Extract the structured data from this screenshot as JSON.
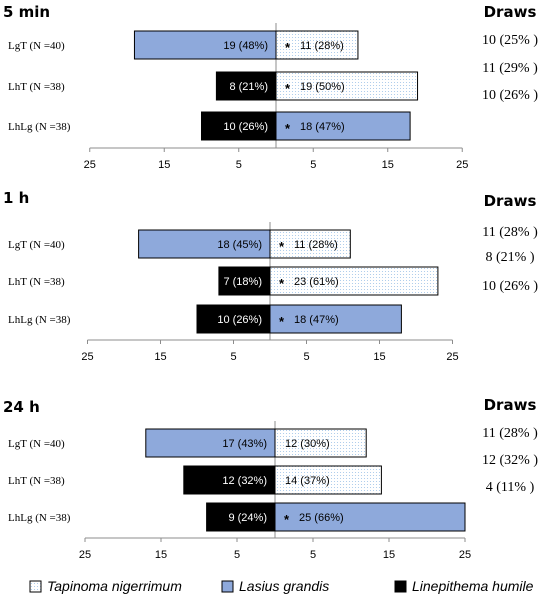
{
  "colors": {
    "lasius": "#8ea9db",
    "linepithema": "#000000",
    "tapinoma_fill": "#ffffff",
    "tapinoma_dots": "#9ec3e8",
    "axis": "#8c8c8c"
  },
  "draws_heading": "Draws",
  "chart_data": [
    {
      "type": "bar",
      "title": "5 min",
      "x_tick_labels": [
        "25",
        "15",
        "5",
        "5",
        "15",
        "25"
      ],
      "xlim": [
        -25,
        25
      ],
      "categories": [
        "LgT (N =40)",
        "LhT (N =38)",
        "LhLg (N =38)"
      ],
      "left": [
        {
          "species": "lasius",
          "value": 19,
          "label": "19 (48%)"
        },
        {
          "species": "linepithema",
          "value": 8,
          "label": "8 (21%)"
        },
        {
          "species": "linepithema",
          "value": 10,
          "label": "10 (26%)"
        }
      ],
      "right": [
        {
          "species": "tapinoma",
          "value": 11,
          "label": "11 (28%)",
          "star": true
        },
        {
          "species": "tapinoma",
          "value": 19,
          "label": "19 (50%)",
          "star": true
        },
        {
          "species": "lasius",
          "value": 18,
          "label": "18 (47%)",
          "star": true
        }
      ],
      "draws": [
        "10 (25% )",
        "11 (29% )",
        "10 (26% )"
      ]
    },
    {
      "type": "bar",
      "title": "1 h",
      "x_tick_labels": [
        "25",
        "15",
        "5",
        "5",
        "15",
        "25"
      ],
      "xlim": [
        -25,
        25
      ],
      "categories": [
        "LgT (N =40)",
        "LhT (N =38)",
        "LhLg (N =38)"
      ],
      "left": [
        {
          "species": "lasius",
          "value": 18,
          "label": "18 (45%)"
        },
        {
          "species": "linepithema",
          "value": 7,
          "label": "7 (18%)"
        },
        {
          "species": "linepithema",
          "value": 10,
          "label": "10 (26%)"
        }
      ],
      "right": [
        {
          "species": "tapinoma",
          "value": 11,
          "label": "11 (28%)",
          "star": true
        },
        {
          "species": "tapinoma",
          "value": 23,
          "label": "23 (61%)",
          "star": true
        },
        {
          "species": "lasius",
          "value": 18,
          "label": "18 (47%)",
          "star": true
        }
      ],
      "draws": [
        "11 (28% )",
        "8 (21% )",
        "10 (26% )"
      ]
    },
    {
      "type": "bar",
      "title": "24 h",
      "x_tick_labels": [
        "25",
        "15",
        "5",
        "5",
        "15",
        "25"
      ],
      "xlim": [
        -25,
        25
      ],
      "categories": [
        "LgT (N =40)",
        "LhT (N =38)",
        "LhLg (N =38)"
      ],
      "left": [
        {
          "species": "lasius",
          "value": 17,
          "label": "17 (43%)"
        },
        {
          "species": "linepithema",
          "value": 12,
          "label": "12 (32%)"
        },
        {
          "species": "linepithema",
          "value": 9,
          "label": "9 (24%)"
        }
      ],
      "right": [
        {
          "species": "tapinoma",
          "value": 12,
          "label": "12 (30%)",
          "star": false
        },
        {
          "species": "tapinoma",
          "value": 14,
          "label": "14 (37%)",
          "star": false
        },
        {
          "species": "lasius",
          "value": 25,
          "label": "25 (66%)",
          "star": true
        }
      ],
      "draws": [
        "11 (28% )",
        "12 (32% )",
        "4 (11% )"
      ]
    }
  ],
  "legend": [
    {
      "species": "tapinoma",
      "label": "Tapinoma nigerrimum"
    },
    {
      "species": "lasius",
      "label": "Lasius grandis"
    },
    {
      "species": "linepithema",
      "label": "Linepithema humile"
    }
  ]
}
